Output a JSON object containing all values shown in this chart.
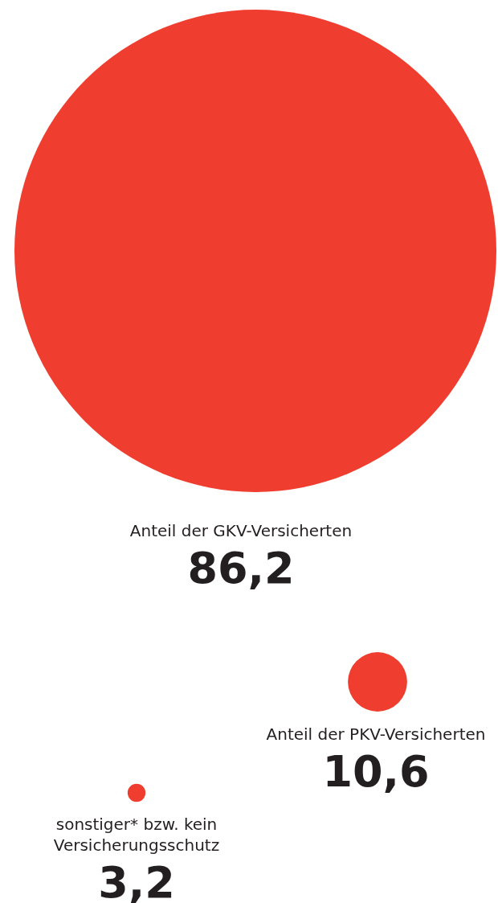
{
  "chart_data": {
    "type": "other",
    "categories": [
      "Anteil der GKV-Versicherten",
      "Anteil der PKV-Versicherten",
      "sonstiger* bzw. kein Versicherungsschutz"
    ],
    "values": [
      86.2,
      10.6,
      3.2
    ],
    "value_labels": [
      "86,2",
      "10,6",
      "3,2"
    ],
    "color": "#ef3e2f"
  }
}
